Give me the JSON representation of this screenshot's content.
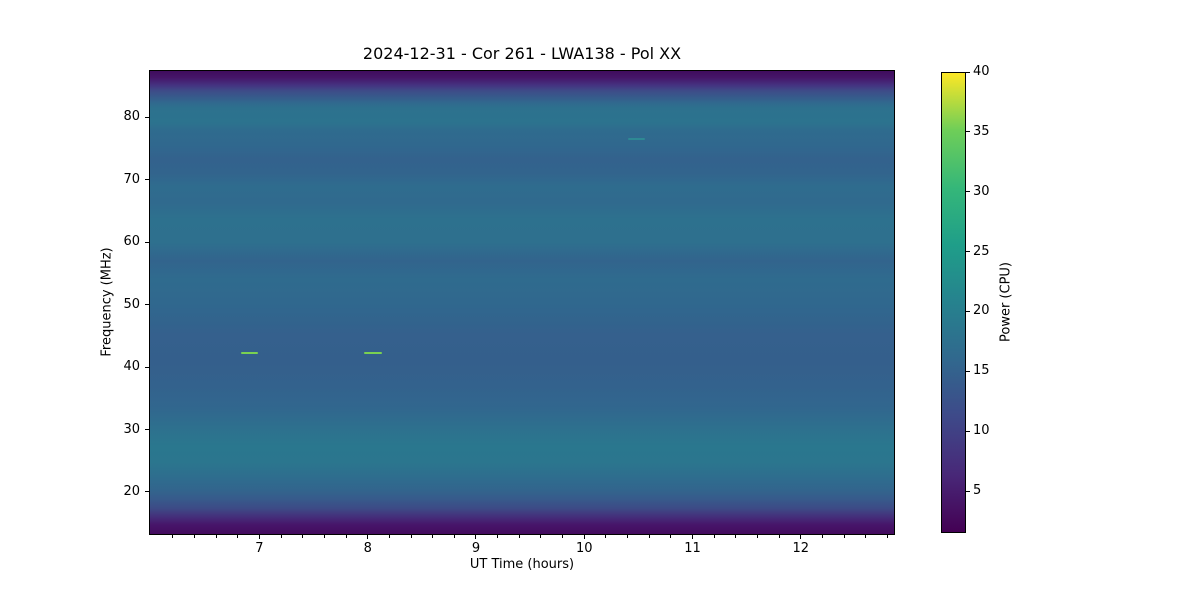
{
  "figure": {
    "background": "#ffffff"
  },
  "chart_data": {
    "type": "heatmap",
    "title": "2024-12-31 - Cor 261 - LWA138 - Pol XX",
    "xlabel": "UT Time (hours)",
    "ylabel": "Frequency (MHz)",
    "x_range_hours": [
      5.98,
      12.87
    ],
    "y_range_mhz": [
      13.1,
      87.6
    ],
    "x_major_ticks": [
      7,
      8,
      9,
      10,
      11,
      12
    ],
    "x_minor_tick_step": 0.2,
    "y_major_ticks": [
      20,
      30,
      40,
      50,
      60,
      70,
      80
    ],
    "grid": false,
    "colormap": "viridis",
    "colorbar": {
      "label": "Power (CPU)",
      "ticks": [
        5,
        10,
        15,
        20,
        25,
        30,
        35,
        40
      ],
      "range": [
        1.5,
        40
      ],
      "gradient_stops": [
        "#440154",
        "#482878",
        "#3e4989",
        "#31688e",
        "#26828e",
        "#1f9e89",
        "#35b779",
        "#6ece58",
        "#fde725"
      ]
    },
    "background_profile_top_to_bottom": [
      {
        "pos": 0.0,
        "color": "#3f0c5d"
      },
      {
        "pos": 0.014,
        "color": "#451568"
      },
      {
        "pos": 0.03,
        "color": "#453180"
      },
      {
        "pos": 0.043,
        "color": "#3e4c88"
      },
      {
        "pos": 0.055,
        "color": "#37598b"
      },
      {
        "pos": 0.068,
        "color": "#31688e"
      },
      {
        "pos": 0.08,
        "color": "#2d718e"
      },
      {
        "pos": 0.11,
        "color": "#2c738e"
      },
      {
        "pos": 0.13,
        "color": "#2f6b8e"
      },
      {
        "pos": 0.16,
        "color": "#30688e"
      },
      {
        "pos": 0.19,
        "color": "#33628d"
      },
      {
        "pos": 0.22,
        "color": "#32648d"
      },
      {
        "pos": 0.25,
        "color": "#2f6c8e"
      },
      {
        "pos": 0.285,
        "color": "#306a8e"
      },
      {
        "pos": 0.32,
        "color": "#2d718e"
      },
      {
        "pos": 0.37,
        "color": "#2e708e"
      },
      {
        "pos": 0.41,
        "color": "#32648d"
      },
      {
        "pos": 0.45,
        "color": "#2f6b8e"
      },
      {
        "pos": 0.5,
        "color": "#30688e"
      },
      {
        "pos": 0.545,
        "color": "#32638d"
      },
      {
        "pos": 0.57,
        "color": "#35608d"
      },
      {
        "pos": 0.63,
        "color": "#345f8c"
      },
      {
        "pos": 0.68,
        "color": "#33628d"
      },
      {
        "pos": 0.73,
        "color": "#31678e"
      },
      {
        "pos": 0.78,
        "color": "#2d728e"
      },
      {
        "pos": 0.81,
        "color": "#2a778e"
      },
      {
        "pos": 0.845,
        "color": "#2b768e"
      },
      {
        "pos": 0.875,
        "color": "#2e6e8e"
      },
      {
        "pos": 0.905,
        "color": "#32658d"
      },
      {
        "pos": 0.925,
        "color": "#375a8b"
      },
      {
        "pos": 0.945,
        "color": "#3d4a86"
      },
      {
        "pos": 0.962,
        "color": "#44307b"
      },
      {
        "pos": 0.98,
        "color": "#47156a"
      },
      {
        "pos": 1.0,
        "color": "#430b5e"
      }
    ],
    "features": [
      {
        "name": "bright-burst-1",
        "t_start": 6.83,
        "t_end": 6.99,
        "freq_mhz": 42.3,
        "color": "#7ad151"
      },
      {
        "name": "bright-burst-2",
        "t_start": 7.97,
        "t_end": 8.13,
        "freq_mhz": 42.3,
        "color": "#7ad151"
      },
      {
        "name": "faint-enhancement",
        "t_start": 10.4,
        "t_end": 10.56,
        "freq_mhz": 76.5,
        "color": "#2e8994"
      }
    ]
  }
}
